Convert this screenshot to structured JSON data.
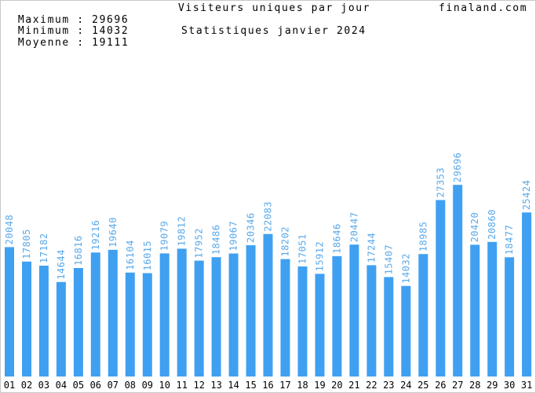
{
  "header": {
    "stats": [
      {
        "label": "Maximum",
        "value": "29696"
      },
      {
        "label": "Minimum",
        "value": "14032"
      },
      {
        "label": "Moyenne",
        "value": "19111"
      }
    ],
    "title": "Visiteurs uniques par jour",
    "subtitle": "Statistiques janvier 2024",
    "site": "finaland.com"
  },
  "colors": {
    "bar": "#3fa0f2",
    "label": "#5aa9ea",
    "axis_text": "#000000",
    "border": "#c8c8c8"
  },
  "chart_data": {
    "type": "bar",
    "title": "Visiteurs uniques par jour",
    "subtitle": "Statistiques janvier 2024",
    "categories": [
      "01",
      "02",
      "03",
      "04",
      "05",
      "06",
      "07",
      "08",
      "09",
      "10",
      "11",
      "12",
      "13",
      "14",
      "15",
      "16",
      "17",
      "18",
      "19",
      "20",
      "21",
      "22",
      "23",
      "24",
      "25",
      "26",
      "27",
      "28",
      "29",
      "30",
      "31"
    ],
    "values": [
      20048,
      17805,
      17182,
      14644,
      16816,
      19216,
      19640,
      16104,
      16015,
      19079,
      19812,
      17952,
      18486,
      19067,
      20346,
      22083,
      18202,
      17051,
      15912,
      18646,
      20447,
      17244,
      15407,
      14032,
      18985,
      27353,
      29696,
      20420,
      20860,
      18477,
      25424
    ],
    "labels": [
      "20048",
      "17805",
      "17182",
      "14644",
      "16816",
      "19216",
      "19640",
      "16104",
      "16015",
      "19079",
      "19812",
      "17952",
      "18486",
      "19067",
      "20346",
      "22083",
      "18202",
      "17051",
      "15912",
      "18646",
      "20447",
      "17244",
      "15407",
      "14032",
      "18985",
      "27353",
      "29696",
      "20420",
      "20860",
      "18477",
      "25424"
    ],
    "ylim": [
      0,
      33500
    ],
    "grid": false,
    "legend": "none"
  }
}
